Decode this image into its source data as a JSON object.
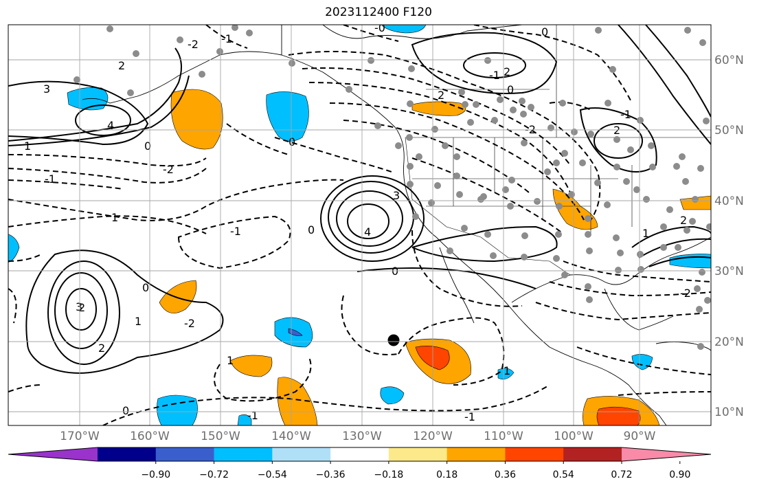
{
  "title": "2023112400 F120",
  "map": {
    "lat_labels": [
      "60°N",
      "50°N",
      "40°N",
      "30°N",
      "20°N",
      "10°N"
    ],
    "lon_labels": [
      "170°W",
      "160°W",
      "150°W",
      "140°W",
      "130°W",
      "120°W",
      "110°W",
      "100°W",
      "90°W"
    ],
    "contour_labels": [
      "-0",
      "0",
      "-1",
      "2",
      "-2",
      "-1",
      "3",
      "4",
      "2",
      "-2",
      "0",
      "-1",
      "0",
      "2",
      "1",
      "3",
      "4",
      "-1",
      "0",
      "0",
      "-1",
      "-2",
      "2",
      "1",
      "2",
      "1",
      "0",
      "3",
      "2",
      "1",
      "-2",
      "0",
      "-1",
      "-1",
      "0",
      "1",
      "2",
      "1",
      "-2"
    ]
  },
  "colorbar": {
    "ticks": [
      "−0.90",
      "−0.72",
      "−0.54",
      "−0.36",
      "−0.18",
      "0.18",
      "0.36",
      "0.54",
      "0.72",
      "0.90"
    ],
    "colors": [
      "#9933cc",
      "#00008b",
      "#3a5fcd",
      "#00bfff",
      "#b0e0f8",
      "#ffffff",
      "#fce98a",
      "#ffa500",
      "#ff4500",
      "#b22222",
      "#f98aa8"
    ]
  },
  "marker": {
    "label": "center point"
  }
}
